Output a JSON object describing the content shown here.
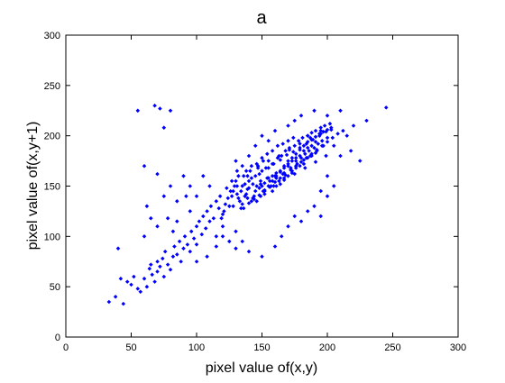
{
  "chart_data": {
    "type": "scatter",
    "title": "a",
    "xlabel": "pixel value of(x,y)",
    "ylabel": "pixel value of(x,y+1)",
    "xlim": [
      0,
      300
    ],
    "ylim": [
      0,
      300
    ],
    "xticks": [
      0,
      50,
      100,
      150,
      200,
      250,
      300
    ],
    "yticks": [
      0,
      50,
      100,
      150,
      200,
      250,
      300
    ],
    "grid": false,
    "marker_color": "#0000ff",
    "series": [
      {
        "values": [
          [
            33,
            35
          ],
          [
            38,
            40
          ],
          [
            40,
            88
          ],
          [
            42,
            58
          ],
          [
            44,
            33
          ],
          [
            47,
            55
          ],
          [
            50,
            52
          ],
          [
            52,
            60
          ],
          [
            55,
            48
          ],
          [
            57,
            45
          ],
          [
            60,
            58
          ],
          [
            62,
            50
          ],
          [
            64,
            68
          ],
          [
            65,
            72
          ],
          [
            66,
            62
          ],
          [
            68,
            55
          ],
          [
            70,
            65
          ],
          [
            70,
            75
          ],
          [
            72,
            70
          ],
          [
            74,
            78
          ],
          [
            75,
            60
          ],
          [
            76,
            85
          ],
          [
            78,
            72
          ],
          [
            80,
            67
          ],
          [
            82,
            80
          ],
          [
            83,
            90
          ],
          [
            85,
            82
          ],
          [
            87,
            95
          ],
          [
            88,
            75
          ],
          [
            90,
            88
          ],
          [
            91,
            100
          ],
          [
            93,
            92
          ],
          [
            95,
            85
          ],
          [
            96,
            105
          ],
          [
            98,
            98
          ],
          [
            100,
            110
          ],
          [
            100,
            92
          ],
          [
            102,
            115
          ],
          [
            104,
            102
          ],
          [
            105,
            120
          ],
          [
            107,
            108
          ],
          [
            108,
            125
          ],
          [
            110,
            115
          ],
          [
            111,
            130
          ],
          [
            113,
            118
          ],
          [
            115,
            135
          ],
          [
            115,
            100
          ],
          [
            117,
            128
          ],
          [
            118,
            140
          ],
          [
            120,
            122
          ],
          [
            55,
            225
          ],
          [
            68,
            230
          ],
          [
            72,
            227
          ],
          [
            80,
            225
          ],
          [
            75,
            208
          ],
          [
            60,
            170
          ],
          [
            70,
            162
          ],
          [
            75,
            140
          ],
          [
            80,
            150
          ],
          [
            85,
            135
          ],
          [
            90,
            160
          ],
          [
            92,
            140
          ],
          [
            95,
            125
          ],
          [
            62,
            130
          ],
          [
            65,
            118
          ],
          [
            70,
            110
          ],
          [
            78,
            118
          ],
          [
            82,
            105
          ],
          [
            60,
            100
          ],
          [
            85,
            115
          ],
          [
            95,
            150
          ],
          [
            100,
            140
          ],
          [
            105,
            160
          ],
          [
            110,
            150
          ],
          [
            120,
            100
          ],
          [
            125,
            95
          ],
          [
            130,
            88
          ],
          [
            115,
            90
          ],
          [
            108,
            80
          ],
          [
            100,
            75
          ],
          [
            120,
            110
          ],
          [
            130,
            105
          ],
          [
            135,
            95
          ],
          [
            140,
            85
          ],
          [
            150,
            80
          ],
          [
            160,
            90
          ],
          [
            165,
            100
          ],
          [
            170,
            110
          ],
          [
            175,
            120
          ],
          [
            180,
            115
          ],
          [
            185,
            125
          ],
          [
            190,
            130
          ],
          [
            195,
            120
          ],
          [
            200,
            140
          ],
          [
            195,
            145
          ],
          [
            205,
            150
          ],
          [
            200,
            160
          ],
          [
            210,
            180
          ],
          [
            205,
            190
          ],
          [
            215,
            200
          ],
          [
            220,
            210
          ],
          [
            230,
            215
          ],
          [
            245,
            228
          ],
          [
            225,
            175
          ],
          [
            218,
            185
          ],
          [
            140,
            180
          ],
          [
            135,
            170
          ],
          [
            130,
            175
          ],
          [
            145,
            190
          ],
          [
            150,
            200
          ],
          [
            155,
            195
          ],
          [
            160,
            205
          ],
          [
            170,
            210
          ],
          [
            175,
            215
          ],
          [
            180,
            220
          ],
          [
            190,
            225
          ],
          [
            200,
            220
          ],
          [
            210,
            225
          ],
          [
            185,
            200
          ],
          [
            195,
            205
          ],
          [
            125,
            130
          ],
          [
            128,
            145
          ],
          [
            132,
            138
          ],
          [
            135,
            150
          ],
          [
            138,
            142
          ],
          [
            140,
            155
          ],
          [
            142,
            135
          ],
          [
            145,
            160
          ],
          [
            148,
            148
          ],
          [
            150,
            165
          ],
          [
            130,
            155
          ],
          [
            133,
            135
          ],
          [
            136,
            160
          ],
          [
            139,
            147
          ],
          [
            141,
            165
          ],
          [
            144,
            140
          ],
          [
            147,
            170
          ],
          [
            149,
            152
          ],
          [
            151,
            175
          ],
          [
            154,
            158
          ],
          [
            152,
            142
          ],
          [
            155,
            168
          ],
          [
            157,
            150
          ],
          [
            158,
            172
          ],
          [
            160,
            160
          ],
          [
            162,
            178
          ],
          [
            163,
            155
          ],
          [
            165,
            180
          ],
          [
            166,
            162
          ],
          [
            168,
            185
          ],
          [
            170,
            170
          ],
          [
            171,
            188
          ],
          [
            173,
            165
          ],
          [
            175,
            190
          ],
          [
            176,
            175
          ],
          [
            178,
            195
          ],
          [
            180,
            178
          ],
          [
            181,
            198
          ],
          [
            183,
            182
          ],
          [
            185,
            200
          ],
          [
            186,
            185
          ],
          [
            188,
            203
          ],
          [
            190,
            188
          ],
          [
            191,
            205
          ],
          [
            193,
            192
          ],
          [
            195,
            208
          ],
          [
            196,
            195
          ],
          [
            198,
            210
          ],
          [
            200,
            198
          ],
          [
            202,
            212
          ],
          [
            128,
            130
          ],
          [
            131,
            142
          ],
          [
            134,
            128
          ],
          [
            137,
            152
          ],
          [
            139,
            138
          ],
          [
            142,
            158
          ],
          [
            145,
            145
          ],
          [
            148,
            162
          ],
          [
            150,
            150
          ],
          [
            153,
            168
          ],
          [
            156,
            155
          ],
          [
            159,
            172
          ],
          [
            161,
            158
          ],
          [
            164,
            176
          ],
          [
            167,
            163
          ],
          [
            169,
            181
          ],
          [
            172,
            168
          ],
          [
            174,
            184
          ],
          [
            177,
            172
          ],
          [
            179,
            188
          ],
          [
            182,
            176
          ],
          [
            184,
            192
          ],
          [
            187,
            180
          ],
          [
            189,
            196
          ],
          [
            192,
            185
          ],
          [
            194,
            200
          ],
          [
            197,
            190
          ],
          [
            199,
            204
          ],
          [
            158,
            145
          ],
          [
            161,
            150
          ],
          [
            164,
            152
          ],
          [
            167,
            158
          ],
          [
            170,
            160
          ],
          [
            173,
            163
          ],
          [
            176,
            168
          ],
          [
            179,
            170
          ],
          [
            182,
            172
          ],
          [
            185,
            178
          ],
          [
            188,
            180
          ],
          [
            191,
            183
          ],
          [
            134,
            145
          ],
          [
            137,
            140
          ],
          [
            140,
            148
          ],
          [
            143,
            152
          ],
          [
            146,
            150
          ],
          [
            149,
            155
          ],
          [
            152,
            153
          ],
          [
            155,
            158
          ],
          [
            158,
            160
          ],
          [
            161,
            163
          ],
          [
            164,
            165
          ],
          [
            167,
            168
          ],
          [
            170,
            172
          ],
          [
            173,
            175
          ],
          [
            176,
            178
          ],
          [
            179,
            180
          ],
          [
            182,
            185
          ],
          [
            185,
            188
          ],
          [
            188,
            190
          ],
          [
            191,
            194
          ],
          [
            127,
            140
          ],
          [
            131,
            150
          ],
          [
            135,
            132
          ],
          [
            139,
            160
          ],
          [
            143,
            138
          ],
          [
            147,
            168
          ],
          [
            151,
            145
          ],
          [
            155,
            175
          ],
          [
            159,
            150
          ],
          [
            163,
            180
          ],
          [
            167,
            156
          ],
          [
            171,
            186
          ],
          [
            175,
            162
          ],
          [
            179,
            192
          ],
          [
            183,
            168
          ],
          [
            187,
            198
          ],
          [
            191,
            174
          ],
          [
            195,
            202
          ],
          [
            199,
            180
          ],
          [
            203,
            206
          ],
          [
            146,
            135
          ],
          [
            149,
            140
          ],
          [
            152,
            145
          ],
          [
            155,
            150
          ],
          [
            158,
            155
          ],
          [
            161,
            160
          ],
          [
            164,
            164
          ],
          [
            167,
            170
          ],
          [
            170,
            175
          ],
          [
            173,
            178
          ],
          [
            176,
            182
          ],
          [
            179,
            186
          ],
          [
            182,
            190
          ],
          [
            185,
            194
          ],
          [
            188,
            196
          ],
          [
            191,
            199
          ],
          [
            194,
            202
          ],
          [
            197,
            204
          ],
          [
            200,
            206
          ],
          [
            203,
            208
          ],
          [
            138,
            165
          ],
          [
            142,
            170
          ],
          [
            146,
            172
          ],
          [
            150,
            178
          ],
          [
            154,
            182
          ],
          [
            158,
            185
          ],
          [
            162,
            190
          ],
          [
            166,
            192
          ],
          [
            170,
            195
          ],
          [
            174,
            198
          ],
          [
            136,
            128
          ],
          [
            140,
            133
          ],
          [
            144,
            137
          ],
          [
            148,
            141
          ],
          [
            152,
            146
          ],
          [
            156,
            149
          ],
          [
            160,
            154
          ],
          [
            164,
            158
          ],
          [
            168,
            161
          ],
          [
            172,
            166
          ],
          [
            176,
            170
          ],
          [
            180,
            174
          ],
          [
            184,
            178
          ],
          [
            188,
            182
          ],
          [
            192,
            186
          ],
          [
            196,
            190
          ],
          [
            200,
            194
          ],
          [
            204,
            198
          ],
          [
            208,
            202
          ],
          [
            212,
            205
          ],
          [
            132,
            160
          ],
          [
            129,
            150
          ],
          [
            126,
            145
          ],
          [
            124,
            138
          ],
          [
            122,
            132
          ],
          [
            121,
            125
          ],
          [
            119,
            118
          ],
          [
            123,
            148
          ],
          [
            127,
            155
          ],
          [
            131,
            165
          ]
        ]
      }
    ]
  }
}
